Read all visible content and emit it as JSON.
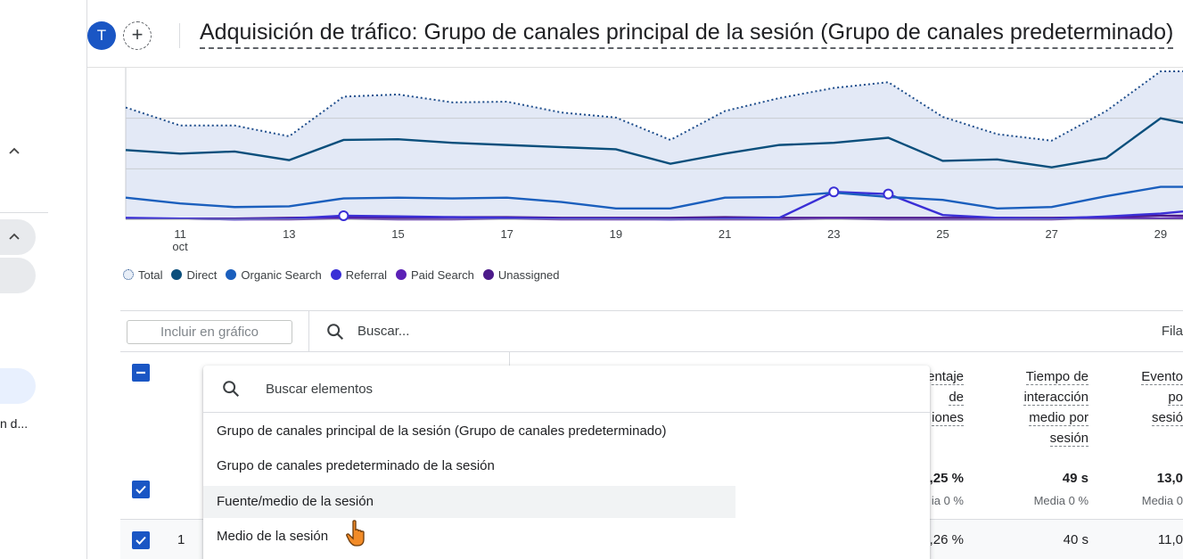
{
  "left_rail": {
    "truncated_text": "n d..."
  },
  "header": {
    "avatar_letter": "T",
    "add_label": "+",
    "title": "Adquisición de tráfico: Grupo de canales principal de la sesión (Grupo de canales predeterminado)"
  },
  "chart_data": {
    "type": "line",
    "x_ticks": [
      "11",
      "13",
      "15",
      "17",
      "19",
      "21",
      "23",
      "25",
      "27",
      "29"
    ],
    "x_sublabel": "oct",
    "legend": [
      "Total",
      "Direct",
      "Organic Search",
      "Referral",
      "Paid Search",
      "Unassigned"
    ],
    "colors": {
      "total": "#1f4e8c",
      "direct": "#0b4f7c",
      "organic": "#1b5fbd",
      "referral": "#3a2fd6",
      "paid": "#5b21b6",
      "unassigned": "#4c1a8a",
      "fill": "#e3e9f6"
    },
    "x": [
      10,
      11,
      12,
      13,
      14,
      15,
      16,
      17,
      18,
      19,
      20,
      21,
      22,
      23,
      24,
      25,
      26,
      27,
      28,
      29,
      30
    ],
    "series": [
      {
        "name": "Total",
        "values": [
          155,
          130,
          130,
          115,
          170,
          173,
          162,
          163,
          148,
          141,
          110,
          150,
          168,
          182,
          190,
          142,
          118,
          109,
          150,
          205,
          205
        ]
      },
      {
        "name": "Direct",
        "values": [
          96,
          91,
          94,
          82,
          110,
          111,
          106,
          103,
          100,
          97,
          77,
          91,
          103,
          106,
          113,
          81,
          83,
          72,
          85,
          140,
          125
        ]
      },
      {
        "name": "Organic Search",
        "values": [
          30,
          22,
          17,
          18,
          29,
          30,
          29,
          30,
          24,
          15,
          15,
          30,
          31,
          37,
          31,
          27,
          15,
          17,
          32,
          45,
          45
        ]
      },
      {
        "name": "Referral",
        "values": [
          2,
          1,
          0,
          1,
          5,
          4,
          3,
          2,
          1,
          1,
          0,
          1,
          2,
          38,
          35,
          6,
          2,
          1,
          4,
          8,
          15
        ]
      },
      {
        "name": "Paid Search",
        "values": [
          1,
          1,
          0,
          0,
          1,
          0,
          0,
          1,
          0,
          0,
          0,
          0,
          0,
          1,
          0,
          0,
          0,
          0,
          2,
          1,
          3
        ]
      },
      {
        "name": "Unassigned",
        "values": [
          1,
          1,
          1,
          2,
          3,
          2,
          3,
          3,
          2,
          2,
          2,
          3,
          2,
          2,
          2,
          2,
          2,
          2,
          3,
          5,
          5
        ]
      }
    ],
    "highlight_points": [
      {
        "series": "Referral",
        "x": 14
      },
      {
        "series": "Referral",
        "x": 23
      },
      {
        "series": "Referral",
        "x": 24
      }
    ],
    "ylim": [
      0,
      210
    ],
    "grid": true
  },
  "toolbar": {
    "include_label": "Incluir en gráfico",
    "search_placeholder": "Buscar...",
    "rows_label": "Fila"
  },
  "table": {
    "headers": [
      {
        "lines": [
          "entaje",
          "de",
          "iones"
        ]
      },
      {
        "lines": [
          "Tiempo de",
          "interacción",
          "medio por",
          "sesión"
        ]
      },
      {
        "lines": [
          "Evento",
          "po",
          "sesió"
        ]
      }
    ],
    "totals": [
      {
        "value": ",25 %",
        "sub": "ia 0 %"
      },
      {
        "value": "49 s",
        "sub": "Media 0 %"
      },
      {
        "value": "13,0",
        "sub": "Media 0"
      }
    ],
    "row1": {
      "num": "1",
      "values": [
        ",26 %",
        "40 s",
        "11,0"
      ]
    }
  },
  "dropdown": {
    "search_placeholder": "Buscar elementos",
    "items": [
      "Grupo de canales principal de la sesión (Grupo de canales predeterminado)",
      "Grupo de canales predeterminado de la sesión",
      "Fuente/medio de la sesión",
      "Medio de la sesión"
    ],
    "hovered_index": 2
  },
  "icons": {
    "search": "search-icon",
    "checkbox_indeterminate": "minus-icon",
    "checkbox_checked": "check-icon",
    "chevron": "chevron-up-icon",
    "cursor": "hand-pointer-icon"
  }
}
